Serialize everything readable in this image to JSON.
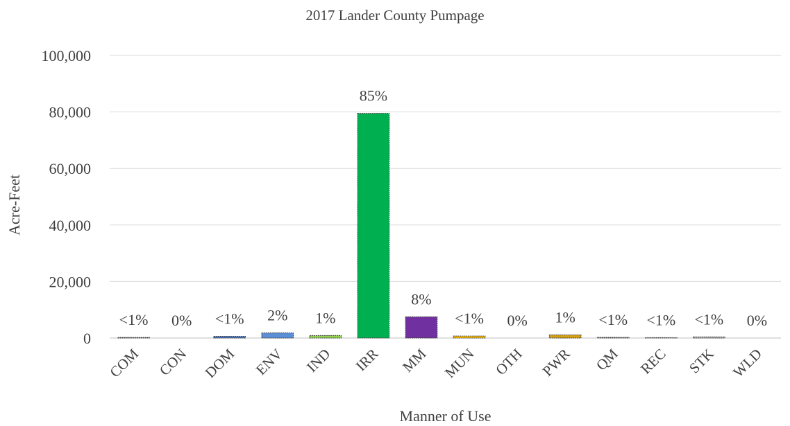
{
  "chart_data": {
    "type": "bar",
    "title": "2017 Lander County Pumpage",
    "xlabel": "Manner of Use",
    "ylabel": "Acre-Feet",
    "ylim": [
      0,
      100000
    ],
    "yticks": [
      "0",
      "20,000",
      "40,000",
      "60,000",
      "80,000",
      "100,000"
    ],
    "grid": true,
    "categories": [
      "COM",
      "CON",
      "DOM",
      "ENV",
      "IND",
      "IRR",
      "MM",
      "MUN",
      "OTH",
      "PWR",
      "QM",
      "REC",
      "STK",
      "WLD"
    ],
    "values": [
      200,
      0,
      600,
      1800,
      900,
      79500,
      7500,
      700,
      0,
      1100,
      250,
      150,
      400,
      0
    ],
    "data_labels": [
      "<1%",
      "0%",
      "<1%",
      "2%",
      "1%",
      "85%",
      "8%",
      "<1%",
      "0%",
      "1%",
      "<1%",
      "<1%",
      "<1%",
      "0%"
    ],
    "colors": [
      "#9e9e9e",
      "#9e9e9e",
      "#4472c4",
      "#5b8fd6",
      "#92d050",
      "#00b050",
      "#7030a0",
      "#ffc000",
      "#9e9e9e",
      "#d4a017",
      "#c0c0c0",
      "#c0c0c0",
      "#bfbfbf",
      "#9e9e9e"
    ]
  }
}
